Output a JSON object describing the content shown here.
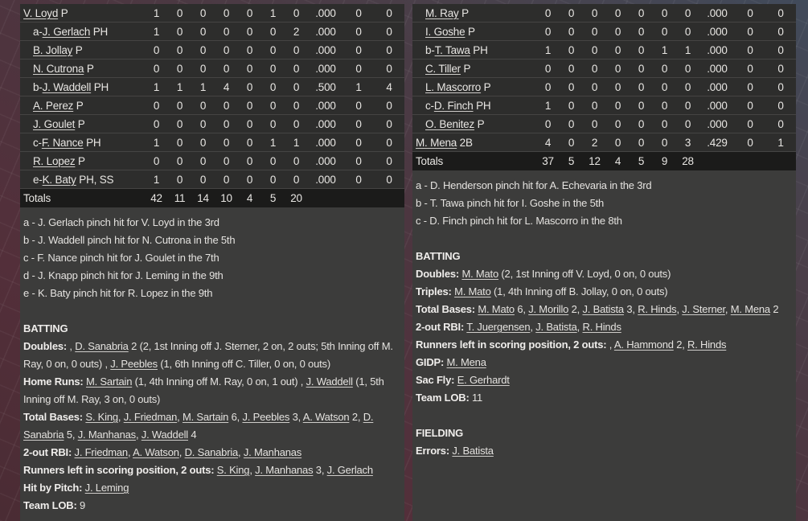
{
  "colors": {
    "row_bg": "#2d2d2c",
    "totals_bg": "#1b1b1a",
    "panel_bg": "#3c3c3b",
    "text": "#e8e6e3",
    "bg_maroon": "#532f3a",
    "bg_slate": "#414b5b"
  },
  "left_table": {
    "rows": [
      {
        "indent": 0,
        "prefix": "",
        "name": "V. Loyd",
        "pos": "P",
        "stats": [
          "1",
          "0",
          "0",
          "0",
          "0",
          "1",
          "0",
          ".000",
          "0",
          "0"
        ]
      },
      {
        "indent": 1,
        "prefix": "a-",
        "name": "J. Gerlach",
        "pos": "PH",
        "stats": [
          "1",
          "0",
          "0",
          "0",
          "0",
          "0",
          "2",
          ".000",
          "0",
          "0"
        ]
      },
      {
        "indent": 1,
        "prefix": "",
        "name": "B. Jollay",
        "pos": "P",
        "stats": [
          "0",
          "0",
          "0",
          "0",
          "0",
          "0",
          "0",
          ".000",
          "0",
          "0"
        ]
      },
      {
        "indent": 1,
        "prefix": "",
        "name": "N. Cutrona",
        "pos": "P",
        "stats": [
          "0",
          "0",
          "0",
          "0",
          "0",
          "0",
          "0",
          ".000",
          "0",
          "0"
        ]
      },
      {
        "indent": 1,
        "prefix": "b-",
        "name": "J. Waddell",
        "pos": "PH",
        "stats": [
          "1",
          "1",
          "1",
          "4",
          "0",
          "0",
          "0",
          ".500",
          "1",
          "4"
        ]
      },
      {
        "indent": 1,
        "prefix": "",
        "name": "A. Perez",
        "pos": "P",
        "stats": [
          "0",
          "0",
          "0",
          "0",
          "0",
          "0",
          "0",
          ".000",
          "0",
          "0"
        ]
      },
      {
        "indent": 1,
        "prefix": "",
        "name": "J. Goulet",
        "pos": "P",
        "stats": [
          "0",
          "0",
          "0",
          "0",
          "0",
          "0",
          "0",
          ".000",
          "0",
          "0"
        ]
      },
      {
        "indent": 1,
        "prefix": "c-",
        "name": "F. Nance",
        "pos": "PH",
        "stats": [
          "1",
          "0",
          "0",
          "0",
          "0",
          "1",
          "1",
          ".000",
          "0",
          "0"
        ]
      },
      {
        "indent": 1,
        "prefix": "",
        "name": "R. Lopez",
        "pos": "P",
        "stats": [
          "0",
          "0",
          "0",
          "0",
          "0",
          "0",
          "0",
          ".000",
          "0",
          "0"
        ]
      },
      {
        "indent": 1,
        "prefix": "e-",
        "name": "K. Baty",
        "pos": "PH, SS",
        "stats": [
          "1",
          "0",
          "0",
          "0",
          "0",
          "0",
          "0",
          ".000",
          "0",
          "0"
        ]
      }
    ],
    "totals": {
      "label": "Totals",
      "stats": [
        "42",
        "11",
        "14",
        "10",
        "4",
        "5",
        "20",
        "",
        "",
        ""
      ]
    }
  },
  "left_notes": [
    "a - J. Gerlach pinch hit for V. Loyd in the 3rd",
    "b - J. Waddell pinch hit for N. Cutrona in the 5th",
    "c - F. Nance pinch hit for J. Goulet in the 7th",
    "d - J. Knapp pinch hit for J. Leming in the 9th",
    "e - K. Baty pinch hit for R. Lopez in the 9th"
  ],
  "left_sections": [
    {
      "title": "BATTING",
      "lines": [
        [
          {
            "t": "Doubles:",
            "b": 1
          },
          {
            "t": " , "
          },
          {
            "t": "D. Sanabria",
            "u": 1
          },
          {
            "t": " 2 (2, 1st Inning off J. Sterner, 2 on, 2 outs; 5th Inning off M. Ray, 0 on, 0 outs) , "
          },
          {
            "t": "J. Peebles",
            "u": 1
          },
          {
            "t": " (1, 6th Inning off C. Tiller, 0 on, 0 outs)"
          }
        ],
        [
          {
            "t": "Home Runs:",
            "b": 1
          },
          {
            "t": " "
          },
          {
            "t": "M. Sartain",
            "u": 1
          },
          {
            "t": " (1, 4th Inning off M. Ray, 0 on, 1 out) , "
          },
          {
            "t": "J. Waddell",
            "u": 1
          },
          {
            "t": " (1, 5th Inning off M. Ray, 3 on, 0 outs)"
          }
        ],
        [
          {
            "t": "Total Bases:",
            "b": 1
          },
          {
            "t": " "
          },
          {
            "t": "S. King",
            "u": 1
          },
          {
            "t": ", "
          },
          {
            "t": "J. Friedman",
            "u": 1
          },
          {
            "t": ", "
          },
          {
            "t": "M. Sartain",
            "u": 1
          },
          {
            "t": " 6, "
          },
          {
            "t": "J. Peebles",
            "u": 1
          },
          {
            "t": " 3, "
          },
          {
            "t": "A. Watson",
            "u": 1
          },
          {
            "t": " 2, "
          },
          {
            "t": "D. Sanabria",
            "u": 1
          },
          {
            "t": " 5, "
          },
          {
            "t": "J. Manhanas",
            "u": 1
          },
          {
            "t": ", "
          },
          {
            "t": "J. Waddell",
            "u": 1
          },
          {
            "t": " 4"
          }
        ],
        [
          {
            "t": "2-out RBI:",
            "b": 1
          },
          {
            "t": " "
          },
          {
            "t": "J. Friedman",
            "u": 1
          },
          {
            "t": ", "
          },
          {
            "t": "A. Watson",
            "u": 1
          },
          {
            "t": ", "
          },
          {
            "t": "D. Sanabria",
            "u": 1
          },
          {
            "t": ", "
          },
          {
            "t": "J. Manhanas",
            "u": 1
          }
        ],
        [
          {
            "t": "Runners left in scoring position, 2 outs:",
            "b": 1
          },
          {
            "t": " "
          },
          {
            "t": "S. King",
            "u": 1
          },
          {
            "t": ", "
          },
          {
            "t": "J. Manhanas",
            "u": 1
          },
          {
            "t": " 3, "
          },
          {
            "t": "J. Gerlach",
            "u": 1
          }
        ],
        [
          {
            "t": "Hit by Pitch:",
            "b": 1
          },
          {
            "t": " "
          },
          {
            "t": "J. Leming",
            "u": 1
          }
        ],
        [
          {
            "t": "Team LOB:",
            "b": 1
          },
          {
            "t": " 9"
          }
        ]
      ]
    }
  ],
  "right_table": {
    "rows": [
      {
        "indent": 1,
        "prefix": "",
        "name": "M. Ray",
        "pos": "P",
        "stats": [
          "0",
          "0",
          "0",
          "0",
          "0",
          "0",
          "0",
          ".000",
          "0",
          "0"
        ]
      },
      {
        "indent": 1,
        "prefix": "",
        "name": "I. Goshe",
        "pos": "P",
        "stats": [
          "0",
          "0",
          "0",
          "0",
          "0",
          "0",
          "0",
          ".000",
          "0",
          "0"
        ]
      },
      {
        "indent": 1,
        "prefix": "b-",
        "name": "T. Tawa",
        "pos": "PH",
        "stats": [
          "1",
          "0",
          "0",
          "0",
          "0",
          "1",
          "1",
          ".000",
          "0",
          "0"
        ]
      },
      {
        "indent": 1,
        "prefix": "",
        "name": "C. Tiller",
        "pos": "P",
        "stats": [
          "0",
          "0",
          "0",
          "0",
          "0",
          "0",
          "0",
          ".000",
          "0",
          "0"
        ]
      },
      {
        "indent": 1,
        "prefix": "",
        "name": "L. Mascorro",
        "pos": "P",
        "stats": [
          "0",
          "0",
          "0",
          "0",
          "0",
          "0",
          "0",
          ".000",
          "0",
          "0"
        ]
      },
      {
        "indent": 1,
        "prefix": "c-",
        "name": "D. Finch",
        "pos": "PH",
        "stats": [
          "1",
          "0",
          "0",
          "0",
          "0",
          "0",
          "0",
          ".000",
          "0",
          "0"
        ]
      },
      {
        "indent": 1,
        "prefix": "",
        "name": "O. Benitez",
        "pos": "P",
        "stats": [
          "0",
          "0",
          "0",
          "0",
          "0",
          "0",
          "0",
          ".000",
          "0",
          "0"
        ]
      },
      {
        "indent": 0,
        "prefix": "",
        "name": "M. Mena",
        "pos": "2B",
        "stats": [
          "4",
          "0",
          "2",
          "0",
          "0",
          "0",
          "3",
          ".429",
          "0",
          "1"
        ]
      }
    ],
    "totals": {
      "label": "Totals",
      "stats": [
        "37",
        "5",
        "12",
        "4",
        "5",
        "9",
        "28",
        "",
        "",
        ""
      ]
    }
  },
  "right_notes": [
    "a - D. Henderson pinch hit for A. Echevaria in the 3rd",
    "b - T. Tawa pinch hit for I. Goshe in the 5th",
    "c - D. Finch pinch hit for L. Mascorro in the 8th"
  ],
  "right_sections": [
    {
      "title": "BATTING",
      "lines": [
        [
          {
            "t": "Doubles:",
            "b": 1
          },
          {
            "t": " "
          },
          {
            "t": "M. Mato",
            "u": 1
          },
          {
            "t": " (2, 1st Inning off V. Loyd, 0 on, 0 outs)"
          }
        ],
        [
          {
            "t": "Triples:",
            "b": 1
          },
          {
            "t": " "
          },
          {
            "t": "M. Mato",
            "u": 1
          },
          {
            "t": " (1, 4th Inning off B. Jollay, 0 on, 0 outs)"
          }
        ],
        [
          {
            "t": "Total Bases:",
            "b": 1
          },
          {
            "t": " "
          },
          {
            "t": "M. Mato",
            "u": 1
          },
          {
            "t": " 6, "
          },
          {
            "t": "J. Morillo",
            "u": 1
          },
          {
            "t": " 2, "
          },
          {
            "t": "J. Batista",
            "u": 1
          },
          {
            "t": " 3, "
          },
          {
            "t": "R. Hinds",
            "u": 1
          },
          {
            "t": ", "
          },
          {
            "t": "J. Sterner",
            "u": 1
          },
          {
            "t": ", "
          },
          {
            "t": "M. Mena",
            "u": 1
          },
          {
            "t": " 2"
          }
        ],
        [
          {
            "t": "2-out RBI:",
            "b": 1
          },
          {
            "t": " "
          },
          {
            "t": "T. Juergensen",
            "u": 1
          },
          {
            "t": ", "
          },
          {
            "t": "J. Batista",
            "u": 1
          },
          {
            "t": ", "
          },
          {
            "t": "R. Hinds",
            "u": 1
          }
        ],
        [
          {
            "t": "Runners left in scoring position, 2 outs:",
            "b": 1
          },
          {
            "t": " , "
          },
          {
            "t": "A. Hammond",
            "u": 1
          },
          {
            "t": " 2, "
          },
          {
            "t": "R. Hinds",
            "u": 1
          }
        ],
        [
          {
            "t": "GIDP:",
            "b": 1
          },
          {
            "t": " "
          },
          {
            "t": "M. Mena",
            "u": 1
          }
        ],
        [
          {
            "t": "Sac Fly:",
            "b": 1
          },
          {
            "t": " "
          },
          {
            "t": "E. Gerhardt",
            "u": 1
          }
        ],
        [
          {
            "t": "Team LOB:",
            "b": 1
          },
          {
            "t": " 11"
          }
        ]
      ]
    },
    {
      "title": "FIELDING",
      "lines": [
        [
          {
            "t": "Errors:",
            "b": 1
          },
          {
            "t": " "
          },
          {
            "t": "J. Batista",
            "u": 1
          }
        ]
      ]
    }
  ]
}
